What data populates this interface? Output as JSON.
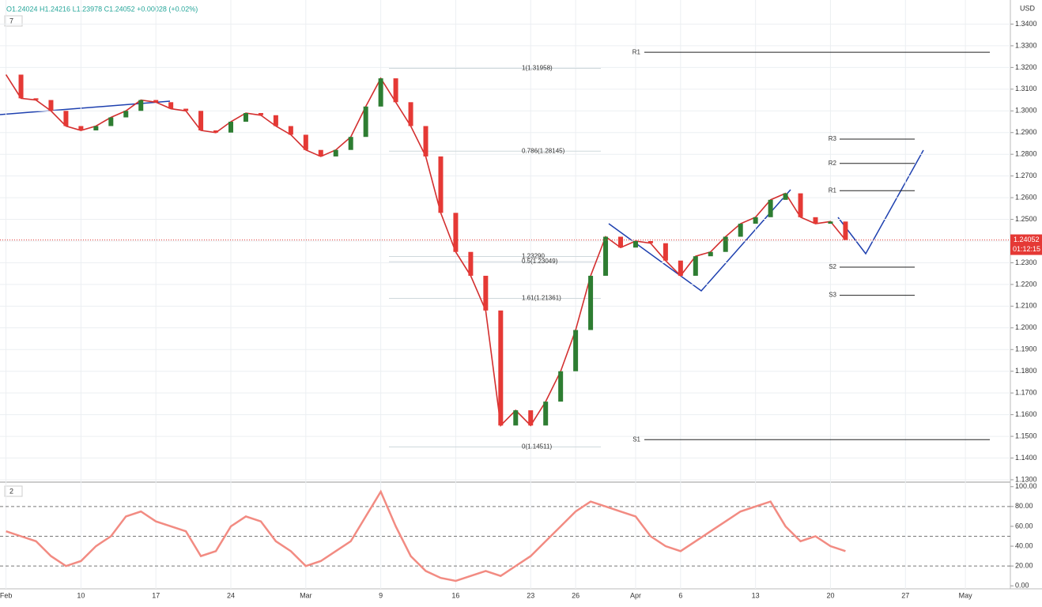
{
  "header": {
    "ohlc": "O1.24024 H1.24216 L1.23978 C1.24052 +0.00028 (+0.02%)",
    "indicators_main": "7",
    "indicators_osc": "2",
    "currency": "USD",
    "last_price": {
      "value": 1.24052,
      "label": "1.24052"
    },
    "countdown": "01:12:15"
  },
  "chart_data": [
    {
      "type": "line",
      "x": [
        0,
        1,
        2,
        3,
        4,
        5,
        6,
        7,
        8,
        9,
        10,
        11,
        12,
        13,
        14,
        15,
        16,
        17,
        18,
        19,
        20,
        21,
        22,
        23,
        24,
        25,
        26,
        27,
        28,
        29,
        30,
        31,
        32,
        33,
        34,
        35,
        36,
        37,
        38,
        39,
        40,
        41,
        42,
        43,
        44,
        45,
        46,
        47,
        48,
        49,
        50,
        51,
        52,
        53,
        54,
        55,
        56
      ],
      "series": [
        {
          "color": "#d32f2f",
          "values": [
            1.3167,
            1.3058,
            1.305,
            1.3,
            1.293,
            1.291,
            1.293,
            1.297,
            1.3,
            1.305,
            1.304,
            1.301,
            1.3,
            1.291,
            1.29,
            1.295,
            1.299,
            1.298,
            1.293,
            1.289,
            1.282,
            1.279,
            1.282,
            1.288,
            1.302,
            1.315,
            1.304,
            1.293,
            1.279,
            1.253,
            1.235,
            1.224,
            1.208,
            1.155,
            1.162,
            1.155,
            1.166,
            1.18,
            1.199,
            1.224,
            1.242,
            1.237,
            1.24,
            1.239,
            1.231,
            1.224,
            1.233,
            1.235,
            1.242,
            1.248,
            1.251,
            1.259,
            1.262,
            1.251,
            1.248,
            1.249,
            1.2405
          ]
        }
      ],
      "xlim": [
        -0.4,
        67
      ],
      "xticks": [
        {
          "value": 0,
          "label": "Feb"
        },
        {
          "value": 5,
          "label": "10"
        },
        {
          "value": 10,
          "label": "17"
        },
        {
          "value": 15,
          "label": "24"
        },
        {
          "value": 20,
          "label": "Mar"
        },
        {
          "value": 25,
          "label": "9"
        },
        {
          "value": 30,
          "label": "16"
        },
        {
          "value": 35,
          "label": "23"
        },
        {
          "value": 38,
          "label": "26"
        },
        {
          "value": 42,
          "label": "Apr"
        },
        {
          "value": 45,
          "label": "6"
        },
        {
          "value": 50,
          "label": "13"
        },
        {
          "value": 55,
          "label": "20"
        },
        {
          "value": 60,
          "label": "27"
        },
        {
          "value": 64,
          "label": "May"
        }
      ],
      "ylim": [
        1.1289,
        1.3511
      ],
      "yticks": [
        {
          "value": 1.34,
          "label": "1.3400"
        },
        {
          "value": 1.33,
          "label": "1.3300"
        },
        {
          "value": 1.32,
          "label": "1.3200"
        },
        {
          "value": 1.31,
          "label": "1.3100"
        },
        {
          "value": 1.3,
          "label": "1.3000"
        },
        {
          "value": 1.29,
          "label": "1.2900"
        },
        {
          "value": 1.28,
          "label": "1.2800"
        },
        {
          "value": 1.27,
          "label": "1.2700"
        },
        {
          "value": 1.26,
          "label": "1.2600"
        },
        {
          "value": 1.25,
          "label": "1.2500"
        },
        {
          "value": 1.24,
          "label": "1.2400"
        },
        {
          "value": 1.23,
          "label": "1.2300"
        },
        {
          "value": 1.22,
          "label": "1.2200"
        },
        {
          "value": 1.21,
          "label": "1.2100"
        },
        {
          "value": 1.2,
          "label": "1.2000"
        },
        {
          "value": 1.19,
          "label": "1.1900"
        },
        {
          "value": 1.18,
          "label": "1.1800"
        },
        {
          "value": 1.17,
          "label": "1.1700"
        },
        {
          "value": 1.16,
          "label": "1.1600"
        },
        {
          "value": 1.15,
          "label": "1.1500"
        },
        {
          "value": 1.14,
          "label": "1.1400"
        },
        {
          "value": 1.13,
          "label": "1.1300"
        }
      ],
      "grid": true,
      "fib_levels": [
        {
          "value": 1.31958,
          "label": "1(1.31958)"
        },
        {
          "value": 1.28145,
          "label": "0.786(1.28145)"
        },
        {
          "value": 1.23049,
          "label": "0.5(1.23049)"
        },
        {
          "value": 1.14511,
          "label": "0(1.14511)"
        },
        {
          "value": 1.21361,
          "label": "1.61(1.21361)"
        },
        {
          "value": 1.2329,
          "label": "1.23290"
        }
      ],
      "pivots_weekly": [
        {
          "value": 1.327,
          "label": "R1"
        },
        {
          "value": 1.1485,
          "label": "S1"
        }
      ],
      "pivots_daily": [
        {
          "value": 1.287,
          "label": "R3"
        },
        {
          "value": 1.2758,
          "label": "R2"
        },
        {
          "value": 1.2632,
          "label": "R1"
        },
        {
          "value": 1.228,
          "label": "S2"
        },
        {
          "value": 1.215,
          "label": "S3"
        }
      ]
    },
    {
      "type": "line",
      "x": [
        0,
        1,
        2,
        3,
        4,
        5,
        6,
        7,
        8,
        9,
        10,
        11,
        12,
        13,
        14,
        15,
        16,
        17,
        18,
        19,
        20,
        21,
        22,
        23,
        24,
        25,
        26,
        27,
        28,
        29,
        30,
        31,
        32,
        33,
        34,
        35,
        36,
        37,
        38,
        39,
        40,
        41,
        42,
        43,
        44,
        45,
        46,
        47,
        48,
        49,
        50,
        51,
        52,
        53,
        54,
        55,
        56
      ],
      "series": [
        {
          "color": "#f28b82",
          "values": [
            55,
            50,
            45,
            30,
            20,
            25,
            40,
            50,
            70,
            75,
            65,
            60,
            55,
            30,
            35,
            60,
            70,
            65,
            45,
            35,
            20,
            25,
            35,
            45,
            70,
            95,
            60,
            30,
            15,
            8,
            5,
            10,
            15,
            10,
            20,
            30,
            45,
            60,
            75,
            85,
            80,
            75,
            70,
            50,
            40,
            35,
            45,
            55,
            65,
            75,
            80,
            85,
            60,
            45,
            50,
            40,
            35
          ]
        }
      ],
      "xlim": [
        -0.4,
        67
      ],
      "ylim": [
        -3,
        103
      ],
      "yticks": [
        {
          "value": 100,
          "label": "100.00"
        },
        {
          "value": 80,
          "label": "80.00"
        },
        {
          "value": 60,
          "label": "60.00"
        },
        {
          "value": 40,
          "label": "40.00"
        },
        {
          "value": 20,
          "label": "20.00"
        },
        {
          "value": 0,
          "label": "0.00"
        }
      ],
      "dashed_levels": [
        80,
        50,
        20
      ]
    }
  ]
}
